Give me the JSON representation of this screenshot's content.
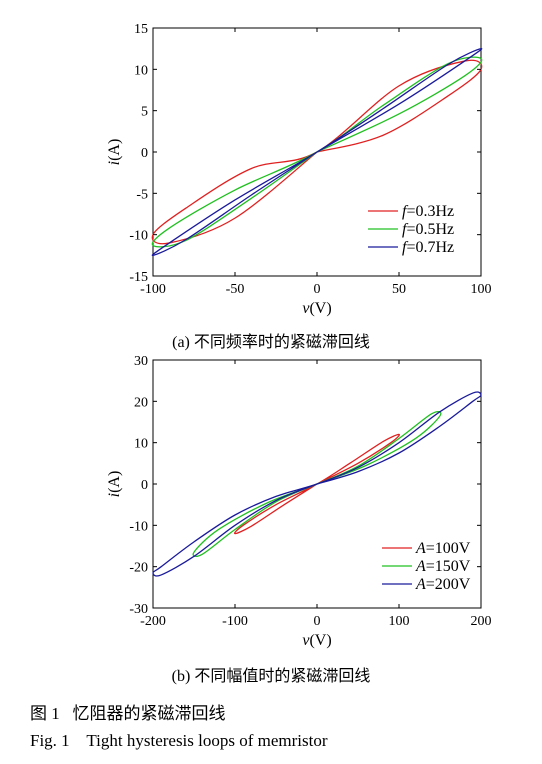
{
  "chart_data": [
    {
      "type": "line",
      "subtitle": "(a) 不同频率时的紧磁滞回线",
      "xlabel": "v(V)",
      "ylabel": "i(A)",
      "xlim": [
        -100,
        100
      ],
      "ylim": [
        -15,
        15
      ],
      "xticks": [
        "-100",
        "-50",
        "0",
        "50",
        "100"
      ],
      "yticks": [
        "15",
        "10",
        "5",
        "0",
        "-5",
        "-10",
        "-15"
      ],
      "grid": false,
      "legend_position": "bottom-right",
      "series": [
        {
          "name": "f=0.3Hz",
          "legend_var": "f",
          "legend_val": "=0.3Hz",
          "color": "#e02020",
          "x": [
            0,
            40,
            80,
            100,
            90,
            50,
            0,
            -40,
            -80,
            -100,
            -90,
            -50,
            0
          ],
          "y": [
            0,
            2.0,
            6.8,
            10.0,
            11.0,
            8.0,
            0,
            -2.0,
            -6.8,
            -10.0,
            -11.0,
            -8.0,
            0
          ]
        },
        {
          "name": "f=0.5Hz",
          "legend_var": "f",
          "legend_val": "=0.5Hz",
          "color": "#20c020",
          "x": [
            0,
            50,
            90,
            100,
            80,
            40,
            0,
            -50,
            -90,
            -100,
            -80,
            -40,
            0
          ],
          "y": [
            0,
            4.6,
            9.2,
            11.3,
            10.7,
            5.6,
            0,
            -4.6,
            -9.2,
            -11.3,
            -10.7,
            -5.6,
            0
          ]
        },
        {
          "name": "f=0.7Hz",
          "legend_var": "f",
          "legend_val": "=0.7Hz",
          "color": "#1a1a9c",
          "x": [
            0,
            50,
            90,
            100,
            80,
            40,
            0,
            -50,
            -90,
            -100,
            -80,
            -40,
            0
          ],
          "y": [
            0,
            5.8,
            11.0,
            12.5,
            10.6,
            5.2,
            0,
            -5.8,
            -11.0,
            -12.5,
            -10.6,
            -5.2,
            0
          ]
        }
      ]
    },
    {
      "type": "line",
      "subtitle": "(b) 不同幅值时的紧磁滞回线",
      "xlabel": "v(V)",
      "ylabel": "i(A)",
      "xlim": [
        -200,
        200
      ],
      "ylim": [
        -30,
        30
      ],
      "xticks": [
        "-200",
        "-100",
        "0",
        "100",
        "200"
      ],
      "yticks": [
        "30",
        "20",
        "10",
        "0",
        "-10",
        "-20",
        "-30"
      ],
      "grid": false,
      "legend_position": "bottom-right",
      "series": [
        {
          "name": "A=100V",
          "legend_var": "A",
          "legend_val": "=100V",
          "color": "#e02020",
          "x": [
            0,
            50,
            90,
            100,
            80,
            40,
            0,
            -50,
            -90,
            -100,
            -80,
            -40,
            0
          ],
          "y": [
            0,
            5.0,
            10.0,
            12.0,
            10.2,
            5.0,
            0,
            -5.0,
            -10.0,
            -12.0,
            -10.2,
            -5.0,
            0
          ]
        },
        {
          "name": "A=150V",
          "legend_var": "A",
          "legend_val": "=150V",
          "color": "#20c020",
          "x": [
            0,
            60,
            120,
            150,
            140,
            100,
            50,
            0,
            -60,
            -120,
            -150,
            -140,
            -100,
            -50,
            0
          ],
          "y": [
            0,
            4.5,
            11.0,
            16.5,
            17.0,
            11.0,
            4.3,
            0,
            -4.5,
            -11.0,
            -16.5,
            -17.0,
            -11.0,
            -4.3,
            0
          ]
        },
        {
          "name": "A=200V",
          "legend_var": "A",
          "legend_val": "=200V",
          "color": "#1a1a9c",
          "x": [
            0,
            50,
            100,
            150,
            190,
            200,
            190,
            150,
            100,
            50,
            0,
            -50,
            -100,
            -150,
            -190,
            -200,
            -190,
            -150,
            -100,
            -50,
            0
          ],
          "y": [
            0,
            3.0,
            7.5,
            14.0,
            20.0,
            21.5,
            22.0,
            17.5,
            10.0,
            4.0,
            0,
            -3.0,
            -7.5,
            -14.0,
            -20.0,
            -21.5,
            -22.0,
            -17.5,
            -10.0,
            -4.0,
            0
          ]
        }
      ]
    }
  ],
  "captions": {
    "fig_cn": "图 1   忆阻器的紧磁滞回线",
    "fig_en": "Fig. 1    Tight hysteresis loops of memristor"
  }
}
